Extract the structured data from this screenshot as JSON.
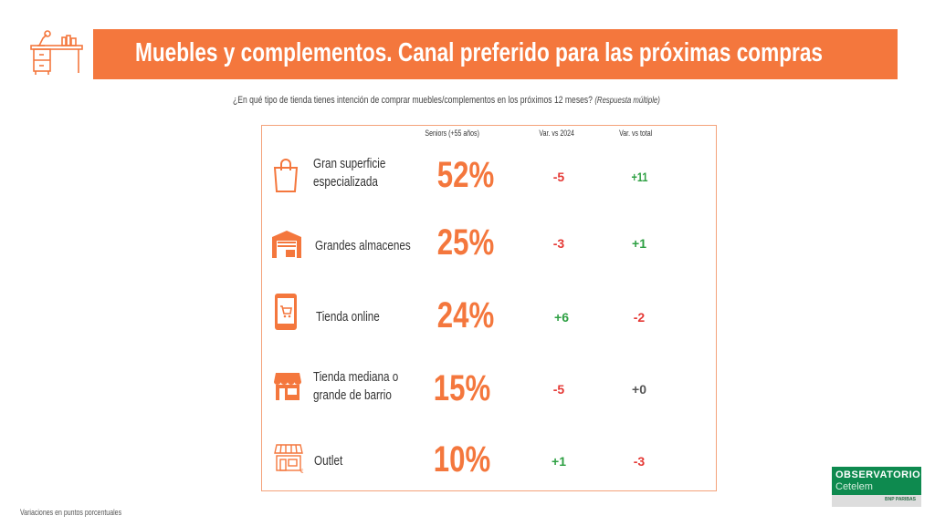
{
  "header": {
    "title": "Muebles y complementos. Canal preferido para las próximas compras",
    "icon": "desk-icon"
  },
  "question": {
    "text": "¿En qué tipo de tienda tienes intención de comprar muebles/complementos en los próximos 12 meses?",
    "note": "(Respuesta múltiple)"
  },
  "columns": {
    "seniors": "Seniors (+55 años)",
    "var2024": "Var. vs 2024",
    "vartotal": "Var. vs total"
  },
  "rows": [
    {
      "icon": "shopping-bag-icon",
      "label1": "Gran superficie",
      "label2": "especializada",
      "pct": "52%",
      "var2024": "-5",
      "vartotal": "+11"
    },
    {
      "icon": "warehouse-icon",
      "label1": "Grandes almacenes",
      "label2": "",
      "pct": "25%",
      "var2024": "-3",
      "vartotal": "+1"
    },
    {
      "icon": "smartphone-cart-icon",
      "label1": "Tienda online",
      "label2": "",
      "pct": "24%",
      "var2024": "+6",
      "vartotal": "-2"
    },
    {
      "icon": "storefront-icon",
      "label1": "Tienda mediana o",
      "label2": "grande de barrio",
      "pct": "15%",
      "var2024": "-5",
      "vartotal": "+0"
    },
    {
      "icon": "outlet-store-icon",
      "label1": "Outlet",
      "label2": "",
      "pct": "10%",
      "var2024": "+1",
      "vartotal": "-3"
    }
  ],
  "footer": "Variaciones en puntos porcentuales",
  "logo": {
    "line1": "OBSERVATORIO",
    "line2": "Cetelem",
    "sub": "BNP PARIBAS"
  },
  "colors": {
    "accent": "#F4773D",
    "negative": "#E53935",
    "positive": "#2EA043",
    "brand": "#0E8A4F"
  }
}
